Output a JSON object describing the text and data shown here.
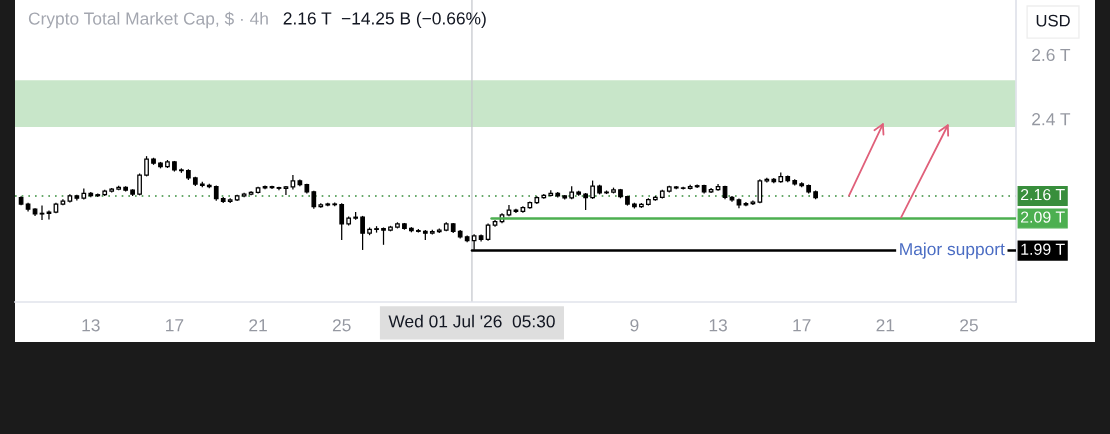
{
  "chart_data": {
    "type": "candlestick",
    "title": "Crypto Total Market Cap, $ · 4h",
    "subtitle": "2.16 T  −14.25 B (−0.66%)",
    "ylabel": "USD",
    "xlim": [
      "2026-06-09T09:00",
      "2026-07-27T06:00"
    ],
    "xticks": [
      {
        "value": "2026-06-13",
        "label": "13"
      },
      {
        "value": "2026-06-17",
        "label": "17"
      },
      {
        "value": "2026-06-21",
        "label": "21"
      },
      {
        "value": "2026-06-25",
        "label": "25"
      },
      {
        "value": "2026-07-09",
        "label": "9"
      },
      {
        "value": "2026-07-13",
        "label": "13"
      },
      {
        "value": "2026-07-17",
        "label": "17"
      },
      {
        "value": "2026-07-21",
        "label": "21"
      },
      {
        "value": "2026-07-25",
        "label": "25"
      }
    ],
    "ylim": [
      1.83,
      2.77
    ],
    "yticks": [
      {
        "value": 2.4,
        "label": "2.4 T"
      },
      {
        "value": 2.6,
        "label": "2.6 T"
      }
    ],
    "bands": [
      {
        "axis": "y",
        "from": 2.375,
        "to": 2.52,
        "color": "#c8e6c9"
      }
    ],
    "ref_lines": [
      {
        "axis": "y",
        "value": 2.16,
        "label": "2.16 T",
        "color": "#388e3c",
        "line_style": "dotted"
      },
      {
        "axis": "x",
        "value": "2026-07-01T05:30",
        "label": "Wed 01 Jul '26  05:30",
        "color": "#c4c6cc",
        "line_style": "solid"
      }
    ],
    "series": [
      {
        "color": "#000000",
        "x": [
          "2026-06-09T16:00",
          "2026-06-10T00:00",
          "2026-06-10T08:00",
          "2026-06-10T16:00",
          "2026-06-11T00:00",
          "2026-06-11T08:00",
          "2026-06-11T16:00",
          "2026-06-12T00:00",
          "2026-06-12T08:00",
          "2026-06-12T16:00",
          "2026-06-13T00:00",
          "2026-06-13T08:00",
          "2026-06-13T16:00",
          "2026-06-14T00:00",
          "2026-06-14T08:00",
          "2026-06-14T16:00",
          "2026-06-15T00:00",
          "2026-06-15T08:00",
          "2026-06-15T16:00",
          "2026-06-16T00:00",
          "2026-06-16T08:00",
          "2026-06-16T16:00",
          "2026-06-17T00:00",
          "2026-06-17T08:00",
          "2026-06-17T16:00",
          "2026-06-18T00:00",
          "2026-06-18T08:00",
          "2026-06-18T16:00",
          "2026-06-19T00:00",
          "2026-06-19T08:00",
          "2026-06-19T16:00",
          "2026-06-20T00:00",
          "2026-06-20T08:00",
          "2026-06-20T16:00",
          "2026-06-21T00:00",
          "2026-06-21T08:00",
          "2026-06-21T16:00",
          "2026-06-22T00:00",
          "2026-06-22T08:00",
          "2026-06-22T16:00",
          "2026-06-23T00:00",
          "2026-06-23T08:00",
          "2026-06-23T16:00",
          "2026-06-24T00:00",
          "2026-06-24T08:00",
          "2026-06-24T16:00",
          "2026-06-25T00:00",
          "2026-06-25T08:00",
          "2026-06-25T16:00",
          "2026-06-26T00:00",
          "2026-06-26T08:00",
          "2026-06-26T16:00",
          "2026-06-27T00:00",
          "2026-06-27T08:00",
          "2026-06-27T16:00",
          "2026-06-28T00:00",
          "2026-06-28T08:00",
          "2026-06-28T16:00",
          "2026-06-29T00:00",
          "2026-06-29T08:00",
          "2026-06-29T16:00",
          "2026-06-30T00:00",
          "2026-06-30T08:00",
          "2026-06-30T16:00",
          "2026-07-01T00:00",
          "2026-07-01T08:00",
          "2026-07-01T16:00",
          "2026-07-02T00:00",
          "2026-07-02T08:00",
          "2026-07-02T16:00",
          "2026-07-03T00:00",
          "2026-07-03T08:00",
          "2026-07-03T16:00",
          "2026-07-04T00:00",
          "2026-07-04T08:00",
          "2026-07-04T16:00",
          "2026-07-05T00:00",
          "2026-07-05T08:00",
          "2026-07-05T16:00",
          "2026-07-06T00:00",
          "2026-07-06T08:00",
          "2026-07-06T16:00",
          "2026-07-07T00:00",
          "2026-07-07T08:00",
          "2026-07-07T16:00",
          "2026-07-08T00:00",
          "2026-07-08T08:00",
          "2026-07-08T16:00",
          "2026-07-09T00:00",
          "2026-07-09T08:00",
          "2026-07-09T16:00",
          "2026-07-10T00:00",
          "2026-07-10T08:00",
          "2026-07-10T16:00",
          "2026-07-11T00:00",
          "2026-07-11T08:00",
          "2026-07-11T16:00",
          "2026-07-12T00:00",
          "2026-07-12T08:00",
          "2026-07-12T16:00",
          "2026-07-13T00:00",
          "2026-07-13T08:00",
          "2026-07-13T16:00",
          "2026-07-14T00:00",
          "2026-07-14T08:00",
          "2026-07-14T16:00",
          "2026-07-15T00:00",
          "2026-07-15T08:00",
          "2026-07-15T16:00",
          "2026-07-16T00:00",
          "2026-07-16T08:00",
          "2026-07-16T16:00",
          "2026-07-17T00:00",
          "2026-07-17T08:00",
          "2026-07-17T16:00"
        ],
        "ohlc": [
          [
            2.155,
            2.159,
            2.131,
            2.135
          ],
          [
            2.135,
            2.139,
            2.112,
            2.119
          ],
          [
            2.119,
            2.122,
            2.098,
            2.104
          ],
          [
            2.104,
            2.13,
            2.085,
            2.106
          ],
          [
            2.106,
            2.115,
            2.087,
            2.11
          ],
          [
            2.11,
            2.139,
            2.106,
            2.135
          ],
          [
            2.135,
            2.15,
            2.131,
            2.144
          ],
          [
            2.144,
            2.165,
            2.14,
            2.16
          ],
          [
            2.16,
            2.164,
            2.146,
            2.153
          ],
          [
            2.153,
            2.183,
            2.149,
            2.168
          ],
          [
            2.168,
            2.172,
            2.156,
            2.161
          ],
          [
            2.161,
            2.168,
            2.157,
            2.164
          ],
          [
            2.164,
            2.179,
            2.16,
            2.175
          ],
          [
            2.175,
            2.185,
            2.171,
            2.181
          ],
          [
            2.181,
            2.192,
            2.178,
            2.187
          ],
          [
            2.187,
            2.19,
            2.174,
            2.178
          ],
          [
            2.178,
            2.181,
            2.16,
            2.166
          ],
          [
            2.166,
            2.23,
            2.162,
            2.225
          ],
          [
            2.225,
            2.284,
            2.221,
            2.275
          ],
          [
            2.275,
            2.279,
            2.257,
            2.262
          ],
          [
            2.262,
            2.266,
            2.246,
            2.251
          ],
          [
            2.251,
            2.272,
            2.247,
            2.266
          ],
          [
            2.266,
            2.269,
            2.236,
            2.241
          ],
          [
            2.241,
            2.246,
            2.232,
            2.239
          ],
          [
            2.239,
            2.243,
            2.21,
            2.216
          ],
          [
            2.216,
            2.22,
            2.191,
            2.197
          ],
          [
            2.197,
            2.204,
            2.187,
            2.193
          ],
          [
            2.193,
            2.198,
            2.184,
            2.189
          ],
          [
            2.189,
            2.193,
            2.145,
            2.152
          ],
          [
            2.152,
            2.157,
            2.138,
            2.143
          ],
          [
            2.143,
            2.153,
            2.138,
            2.148
          ],
          [
            2.148,
            2.164,
            2.144,
            2.16
          ],
          [
            2.16,
            2.17,
            2.156,
            2.166
          ],
          [
            2.166,
            2.175,
            2.162,
            2.171
          ],
          [
            2.171,
            2.189,
            2.168,
            2.185
          ],
          [
            2.185,
            2.193,
            2.181,
            2.189
          ],
          [
            2.189,
            2.192,
            2.182,
            2.186
          ],
          [
            2.186,
            2.189,
            2.178,
            2.184
          ],
          [
            2.184,
            2.191,
            2.163,
            2.188
          ],
          [
            2.188,
            2.225,
            2.18,
            2.207
          ],
          [
            2.207,
            2.211,
            2.19,
            2.195
          ],
          [
            2.195,
            2.198,
            2.168,
            2.173
          ],
          [
            2.173,
            2.176,
            2.12,
            2.127
          ],
          [
            2.127,
            2.137,
            2.123,
            2.132
          ],
          [
            2.132,
            2.139,
            2.128,
            2.135
          ],
          [
            2.135,
            2.14,
            2.128,
            2.133
          ],
          [
            2.133,
            2.137,
            2.023,
            2.073
          ],
          [
            2.073,
            2.096,
            2.068,
            2.091
          ],
          [
            2.091,
            2.11,
            2.086,
            2.094
          ],
          [
            2.094,
            2.098,
            1.992,
            2.044
          ],
          [
            2.044,
            2.062,
            2.038,
            2.056
          ],
          [
            2.056,
            2.066,
            2.046,
            2.058
          ],
          [
            2.058,
            2.062,
            2.008,
            2.054
          ],
          [
            2.054,
            2.067,
            2.05,
            2.063
          ],
          [
            2.063,
            2.078,
            2.059,
            2.073
          ],
          [
            2.073,
            2.076,
            2.055,
            2.059
          ],
          [
            2.059,
            2.063,
            2.047,
            2.052
          ],
          [
            2.052,
            2.057,
            2.046,
            2.05
          ],
          [
            2.05,
            2.054,
            2.023,
            2.044
          ],
          [
            2.044,
            2.055,
            2.04,
            2.049
          ],
          [
            2.049,
            2.059,
            2.045,
            2.054
          ],
          [
            2.054,
            2.078,
            2.05,
            2.073
          ],
          [
            2.073,
            2.076,
            2.045,
            2.05
          ],
          [
            2.05,
            2.054,
            2.028,
            2.033
          ],
          [
            2.033,
            2.037,
            2.016,
            2.021
          ],
          [
            2.021,
            2.041,
            1.993,
            2.036
          ],
          [
            2.036,
            2.04,
            2.018,
            2.025
          ],
          [
            2.025,
            2.074,
            2.021,
            2.069
          ],
          [
            2.069,
            2.085,
            2.064,
            2.08
          ],
          [
            2.08,
            2.106,
            2.075,
            2.101
          ],
          [
            2.101,
            2.132,
            2.097,
            2.116
          ],
          [
            2.116,
            2.12,
            2.107,
            2.112
          ],
          [
            2.112,
            2.128,
            2.108,
            2.124
          ],
          [
            2.124,
            2.143,
            2.12,
            2.139
          ],
          [
            2.139,
            2.159,
            2.135,
            2.155
          ],
          [
            2.155,
            2.166,
            2.151,
            2.162
          ],
          [
            2.162,
            2.178,
            2.158,
            2.168
          ],
          [
            2.168,
            2.172,
            2.155,
            2.16
          ],
          [
            2.16,
            2.163,
            2.149,
            2.154
          ],
          [
            2.154,
            2.19,
            2.15,
            2.172
          ],
          [
            2.172,
            2.176,
            2.161,
            2.166
          ],
          [
            2.166,
            2.169,
            2.116,
            2.155
          ],
          [
            2.155,
            2.208,
            2.151,
            2.191
          ],
          [
            2.191,
            2.195,
            2.165,
            2.17
          ],
          [
            2.17,
            2.177,
            2.166,
            2.172
          ],
          [
            2.172,
            2.186,
            2.168,
            2.179
          ],
          [
            2.179,
            2.182,
            2.153,
            2.158
          ],
          [
            2.158,
            2.161,
            2.13,
            2.135
          ],
          [
            2.135,
            2.139,
            2.121,
            2.127
          ],
          [
            2.127,
            2.138,
            2.123,
            2.134
          ],
          [
            2.134,
            2.153,
            2.13,
            2.149
          ],
          [
            2.149,
            2.16,
            2.145,
            2.156
          ],
          [
            2.156,
            2.179,
            2.152,
            2.175
          ],
          [
            2.175,
            2.192,
            2.171,
            2.188
          ],
          [
            2.188,
            2.191,
            2.181,
            2.185
          ],
          [
            2.185,
            2.189,
            2.18,
            2.184
          ],
          [
            2.184,
            2.195,
            2.18,
            2.189
          ],
          [
            2.189,
            2.196,
            2.185,
            2.192
          ],
          [
            2.192,
            2.195,
            2.168,
            2.173
          ],
          [
            2.173,
            2.185,
            2.169,
            2.18
          ],
          [
            2.18,
            2.197,
            2.176,
            2.189
          ],
          [
            2.189,
            2.192,
            2.15,
            2.156
          ],
          [
            2.156,
            2.16,
            2.142,
            2.148
          ],
          [
            2.148,
            2.152,
            2.122,
            2.132
          ],
          [
            2.132,
            2.141,
            2.128,
            2.136
          ],
          [
            2.136,
            2.146,
            2.132,
            2.141
          ],
          [
            2.141,
            2.212,
            2.137,
            2.207
          ],
          [
            2.207,
            2.217,
            2.202,
            2.212
          ],
          [
            2.212,
            2.216,
            2.2,
            2.205
          ],
          [
            2.205,
            2.233,
            2.201,
            2.22
          ],
          [
            2.22,
            2.224,
            2.203,
            2.208
          ],
          [
            2.208,
            2.212,
            2.193,
            2.198
          ],
          [
            2.198,
            2.203,
            2.187,
            2.192
          ],
          [
            2.192,
            2.196,
            2.168,
            2.173
          ],
          [
            2.173,
            2.177,
            2.15,
            2.155
          ]
        ]
      },
      {
        "type": "line",
        "color": "#4caf50",
        "x": [
          "2026-07-02T04:00",
          "2026-07-27T06:00"
        ],
        "values": [
          2.09,
          2.09
        ],
        "value_labels": [
          null,
          "2.09 T"
        ]
      },
      {
        "type": "line",
        "name": "Major support",
        "color": "#000000",
        "x": [
          "2026-07-01T05:30",
          "2026-07-27T06:00"
        ],
        "values": [
          1.99,
          1.99
        ],
        "value_labels": [
          null,
          "1.99 T"
        ]
      }
    ]
  }
}
